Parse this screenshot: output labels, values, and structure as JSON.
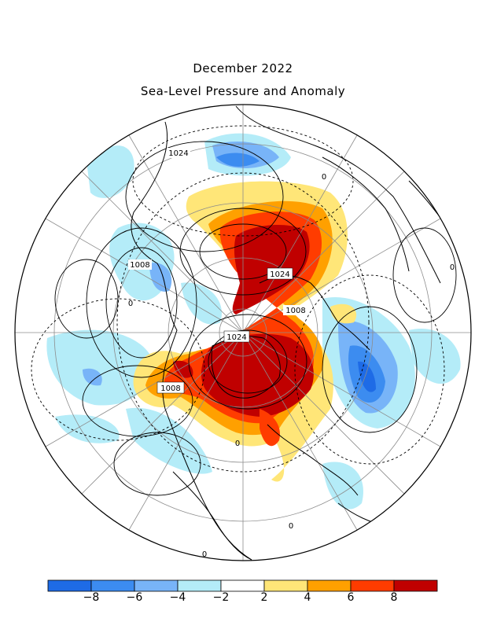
{
  "header": {
    "title": "December 2022",
    "subtitle": "Sea-Level Pressure and Anomaly"
  },
  "map": {
    "projection": "polar stereographic",
    "contour_labels": [
      "1024",
      "1008",
      "0",
      "1024",
      "1008",
      "1024",
      "1008",
      "0",
      "0",
      "0",
      "0",
      "0"
    ]
  },
  "colorbar": {
    "ticks": [
      "-8",
      "-6",
      "-4",
      "-2",
      "2",
      "4",
      "6",
      "8"
    ],
    "colors": [
      "#1e6be6",
      "#3c8cf0",
      "#78b4f8",
      "#b4ecf8",
      "#ffffff",
      "#ffe678",
      "#ffa000",
      "#ff3c00",
      "#c00000"
    ]
  }
}
